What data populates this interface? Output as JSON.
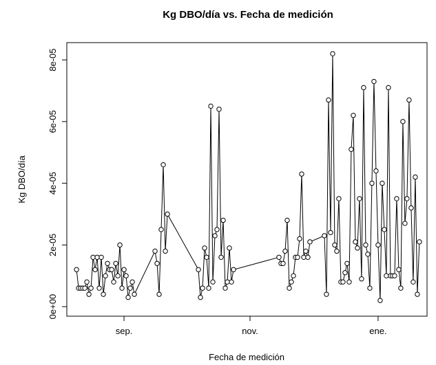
{
  "chart_data": {
    "type": "line",
    "title": "Kg DBO/día vs. Fecha de medición",
    "x_label": "Fecha de medición",
    "y_label": "Kg DBO/día",
    "x": [
      220,
      221,
      222,
      223,
      224,
      225,
      226,
      227,
      228,
      229,
      230,
      231,
      232,
      233,
      234,
      235,
      236,
      237,
      238,
      239,
      240,
      241,
      242,
      243,
      244,
      245,
      246,
      247,
      248,
      258,
      259,
      260,
      261,
      262,
      263,
      264,
      279,
      280,
      281,
      282,
      283,
      284,
      285,
      286,
      287,
      288,
      289,
      290,
      291,
      292,
      293,
      294,
      295,
      296,
      318,
      319,
      320,
      321,
      322,
      323,
      324,
      325,
      326,
      327,
      328,
      329,
      330,
      331,
      332,
      333,
      340,
      341,
      342,
      343,
      344,
      345,
      346,
      347,
      348,
      349,
      350,
      351,
      352,
      353,
      354,
      355,
      356,
      357,
      358,
      359,
      360,
      361,
      362,
      363,
      364,
      365,
      366,
      367,
      368,
      369,
      370,
      371,
      372,
      373,
      374,
      375,
      376,
      377,
      378,
      379,
      380,
      381,
      382,
      383,
      384,
      385,
      386
    ],
    "series": [
      {
        "name": "Kg DBO/día",
        "color": "#000000",
        "values": [
          1.2e-05,
          6e-06,
          6e-06,
          6e-06,
          6e-06,
          8e-06,
          4e-06,
          6e-06,
          1.6e-05,
          1.2e-05,
          1.6e-05,
          6e-06,
          1.6e-05,
          4e-06,
          1e-05,
          1.4e-05,
          1.2e-05,
          1.2e-05,
          8e-06,
          1.4e-05,
          1e-05,
          2e-05,
          6e-06,
          1.2e-05,
          1e-05,
          3e-06,
          6e-06,
          8e-06,
          4e-06,
          1.8e-05,
          1.4e-05,
          4e-06,
          2.5e-05,
          4.6e-05,
          1.8e-05,
          3e-05,
          1.2e-05,
          3e-06,
          6e-06,
          1.9e-05,
          1.6e-05,
          6e-06,
          6.5e-05,
          8e-06,
          2.3e-05,
          2.5e-05,
          6.4e-05,
          1.6e-05,
          2.8e-05,
          6e-06,
          8e-06,
          1.9e-05,
          8e-06,
          1.2e-05,
          1.6e-05,
          1.4e-05,
          1.4e-05,
          1.8e-05,
          2.8e-05,
          6e-06,
          8e-06,
          1e-05,
          1.6e-05,
          1.6e-05,
          2.2e-05,
          4.3e-05,
          1.6e-05,
          1.8e-05,
          1.6e-05,
          2.1e-05,
          2.3e-05,
          4e-06,
          6.7e-05,
          2.4e-05,
          8.2e-05,
          2e-05,
          1.8e-05,
          3.5e-05,
          8e-06,
          8e-06,
          1.1e-05,
          1.4e-05,
          8e-06,
          5.1e-05,
          6.2e-05,
          2.1e-05,
          1.9e-05,
          3.5e-05,
          9e-06,
          7.1e-05,
          2e-05,
          1.7e-05,
          6e-06,
          4e-05,
          7.3e-05,
          4.4e-05,
          2e-05,
          2e-06,
          4e-05,
          2.5e-05,
          1e-05,
          7.1e-05,
          1e-05,
          1e-05,
          1e-05,
          3.5e-05,
          1.2e-05,
          6e-06,
          6e-05,
          2.7e-05,
          3.5e-05,
          6.7e-05,
          3.2e-05,
          8e-06,
          4.2e-05,
          4e-06,
          2.1e-05
        ]
      }
    ],
    "xlim": [
      215.3,
      389.7
    ],
    "xticks": [
      {
        "value": 243,
        "label": "sep."
      },
      {
        "value": 304,
        "label": "nov."
      },
      {
        "value": 366,
        "label": "ene."
      }
    ],
    "ylim": [
      -3.1e-06,
      8.56e-05
    ],
    "yticks": [
      {
        "value": 0,
        "label": "0e+00"
      },
      {
        "value": 2e-05,
        "label": "2e-05"
      },
      {
        "value": 4e-05,
        "label": "4e-05"
      },
      {
        "value": 6e-05,
        "label": "6e-05"
      },
      {
        "value": 8e-05,
        "label": "8e-05"
      }
    ]
  }
}
